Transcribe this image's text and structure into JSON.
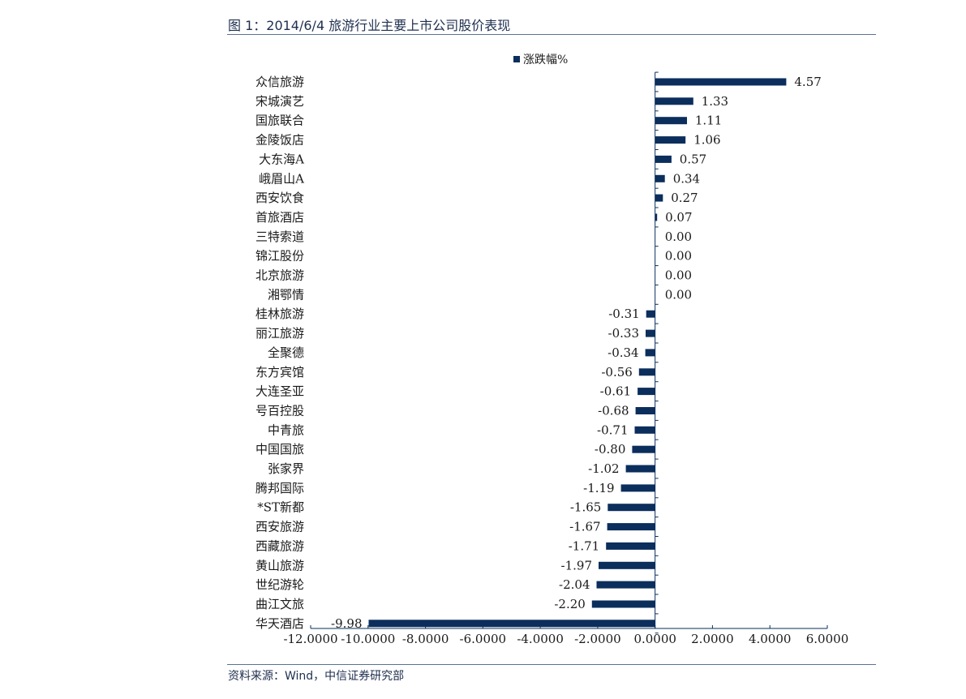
{
  "figure": {
    "title": "图 1：2014/6/4 旅游行业主要上市公司股价表现",
    "source": "资料来源：Wind，中信证券研究部"
  },
  "colors": {
    "bar": "#0b2e5c",
    "axis": "#0b2e5c",
    "rule": "#5a7190",
    "text": "#1a1a1a"
  },
  "chart_data": {
    "type": "bar",
    "orientation": "horizontal",
    "legend_position": "top-center",
    "grid": false,
    "xlim": [
      -12,
      6
    ],
    "x_ticks": [
      -12,
      -10,
      -8,
      -6,
      -4,
      -2,
      0,
      2,
      4,
      6
    ],
    "x_tick_labels": [
      "-12.0000",
      "-10.0000",
      "-8.0000",
      "-6.0000",
      "-4.0000",
      "-2.0000",
      "0.0000",
      "2.0000",
      "4.0000",
      "6.0000"
    ],
    "series": [
      {
        "name": "涨跌幅%",
        "categories": [
          "众信旅游",
          "宋城演艺",
          "国旅联合",
          "金陵饭店",
          "大东海A",
          "峨眉山A",
          "西安饮食",
          "首旅酒店",
          "三特索道",
          "锦江股份",
          "北京旅游",
          "湘鄂情",
          "桂林旅游",
          "丽江旅游",
          "全聚德",
          "东方宾馆",
          "大连圣亚",
          "号百控股",
          "中青旅",
          "中国国旅",
          "张家界",
          "腾邦国际",
          "*ST新都",
          "西安旅游",
          "西藏旅游",
          "黄山旅游",
          "世纪游轮",
          "曲江文旅",
          "华天酒店"
        ],
        "values": [
          4.57,
          1.33,
          1.11,
          1.06,
          0.57,
          0.34,
          0.27,
          0.07,
          0.0,
          0.0,
          0.0,
          0.0,
          -0.31,
          -0.33,
          -0.34,
          -0.56,
          -0.61,
          -0.68,
          -0.71,
          -0.8,
          -1.02,
          -1.19,
          -1.65,
          -1.67,
          -1.71,
          -1.97,
          -2.04,
          -2.2,
          -9.98
        ],
        "value_labels": [
          "4.57",
          "1.33",
          "1.11",
          "1.06",
          "0.57",
          "0.34",
          "0.27",
          "0.07",
          "0.00",
          "0.00",
          "0.00",
          "0.00",
          "-0.31",
          "-0.33",
          "-0.34",
          "-0.56",
          "-0.61",
          "-0.68",
          "-0.71",
          "-0.80",
          "-1.02",
          "-1.19",
          "-1.65",
          "-1.67",
          "-1.71",
          "-1.97",
          "-2.04",
          "-2.20",
          "-9.98"
        ]
      }
    ]
  }
}
